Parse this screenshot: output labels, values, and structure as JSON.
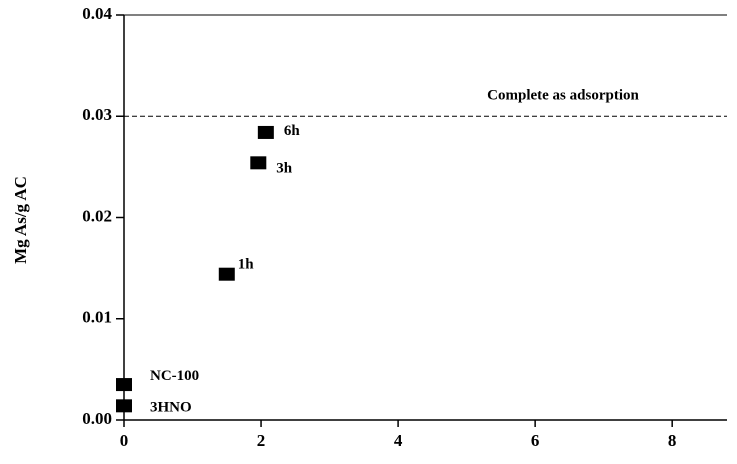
{
  "chart_data": {
    "type": "scatter",
    "y_label": "Mg As/g AC",
    "x": [
      0,
      0,
      1.5,
      1.96,
      2.07
    ],
    "values": [
      0.0035,
      0.0014,
      0.0144,
      0.0254,
      0.0284
    ],
    "point_labels": [
      "NC-100",
      "3HNO",
      "1h",
      "3h",
      "6h"
    ],
    "color": "#000000",
    "hline": {
      "value": 0.03,
      "label": "Complete as adsorption"
    },
    "xlim": [
      0,
      8.8
    ],
    "xticks": [
      0,
      2,
      4,
      6,
      8
    ],
    "ylim": [
      0,
      0.04
    ],
    "yticks": [
      {
        "value": 0,
        "label": "0.00"
      },
      0.01,
      0.02,
      0.03,
      0.04
    ],
    "grid": false
  }
}
